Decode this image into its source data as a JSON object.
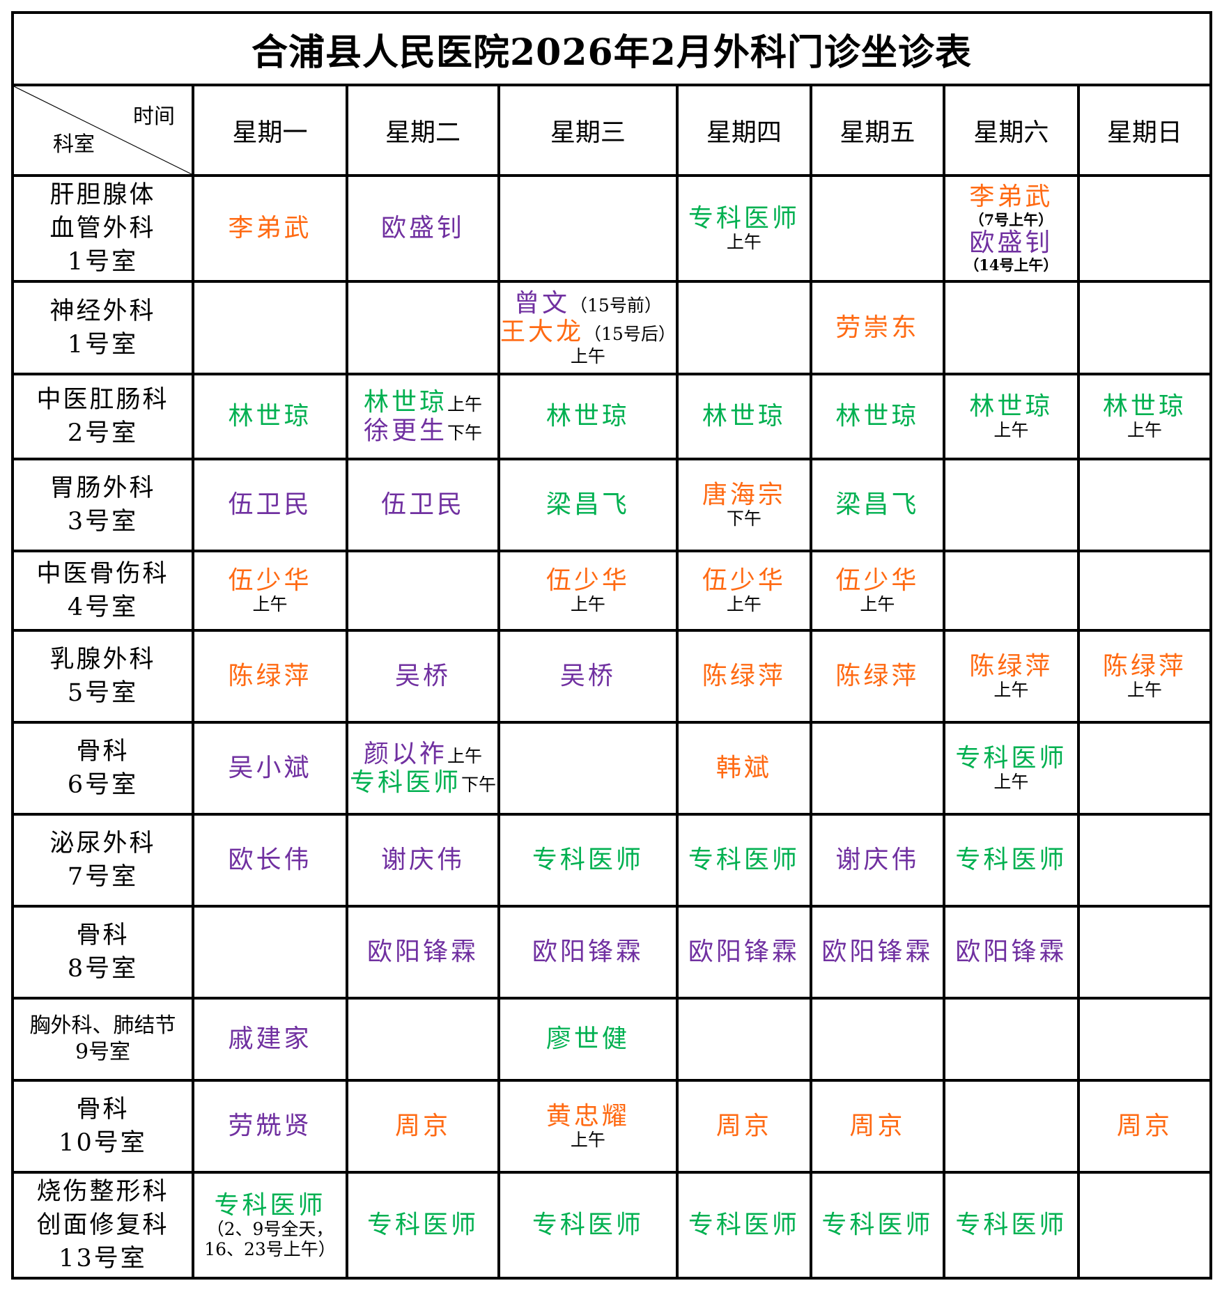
{
  "title": "合浦县人民医院2026年2月外科门诊坐诊表",
  "corner": {
    "top": "时间",
    "bottom": "科室"
  },
  "days": [
    "星期一",
    "星期二",
    "星期三",
    "星期四",
    "星期五",
    "星期六",
    "星期日"
  ],
  "colors": {
    "orange": "#FF6A13",
    "purple": "#7030A0",
    "green": "#00B050"
  },
  "rows": [
    {
      "dept": [
        "肝胆腺体",
        "血管外科",
        "1号室"
      ],
      "cells": [
        [
          [
            {
              "t": "李弟武",
              "c": "orange"
            }
          ]
        ],
        [
          [
            {
              "t": "欧盛钊",
              "c": "purple"
            }
          ]
        ],
        [],
        [
          [
            {
              "t": "专科医师",
              "c": "green"
            }
          ],
          [
            {
              "t": "上午",
              "c": "note"
            }
          ]
        ],
        [],
        [
          [
            {
              "t": "李弟武",
              "c": "orange"
            }
          ],
          [
            {
              "t": "（7号上午）",
              "c": "small"
            }
          ],
          [
            {
              "t": "欧盛钊",
              "c": "purple"
            }
          ],
          [
            {
              "t": "（14号上午）",
              "c": "small"
            }
          ]
        ],
        []
      ]
    },
    {
      "dept": [
        "神经外科",
        "1号室"
      ],
      "cells": [
        [],
        [],
        [
          [
            {
              "t": "曾文",
              "c": "purple"
            },
            {
              "t": "（15号前）",
              "c": "note"
            }
          ],
          [
            {
              "t": "王大龙",
              "c": "orange"
            },
            {
              "t": "（15号后）",
              "c": "note"
            }
          ],
          [
            {
              "t": "上午",
              "c": "note"
            }
          ]
        ],
        [],
        [
          [
            {
              "t": "劳崇东",
              "c": "orange"
            }
          ]
        ],
        [],
        []
      ]
    },
    {
      "dept": [
        "中医肛肠科",
        "2号室"
      ],
      "cells": [
        [
          [
            {
              "t": "林世琼",
              "c": "green"
            }
          ]
        ],
        [
          [
            {
              "t": "林世琼",
              "c": "green"
            },
            {
              "t": "上午",
              "c": "note"
            }
          ],
          [
            {
              "t": "徐更生",
              "c": "purple"
            },
            {
              "t": "下午",
              "c": "note"
            }
          ]
        ],
        [
          [
            {
              "t": "林世琼",
              "c": "green"
            }
          ]
        ],
        [
          [
            {
              "t": "林世琼",
              "c": "green"
            }
          ]
        ],
        [
          [
            {
              "t": "林世琼",
              "c": "green"
            }
          ]
        ],
        [
          [
            {
              "t": "林世琼",
              "c": "green"
            }
          ],
          [
            {
              "t": "上午",
              "c": "note"
            }
          ]
        ],
        [
          [
            {
              "t": "林世琼",
              "c": "green"
            }
          ],
          [
            {
              "t": "上午",
              "c": "note"
            }
          ]
        ]
      ]
    },
    {
      "dept": [
        "胃肠外科",
        "3号室"
      ],
      "cells": [
        [
          [
            {
              "t": "伍卫民",
              "c": "purple"
            }
          ]
        ],
        [
          [
            {
              "t": "伍卫民",
              "c": "purple"
            }
          ]
        ],
        [
          [
            {
              "t": "梁昌飞",
              "c": "green"
            }
          ]
        ],
        [
          [
            {
              "t": "唐海宗",
              "c": "orange"
            }
          ],
          [
            {
              "t": "下午",
              "c": "note"
            }
          ]
        ],
        [
          [
            {
              "t": "梁昌飞",
              "c": "green"
            }
          ]
        ],
        [],
        []
      ]
    },
    {
      "dept": [
        "中医骨伤科",
        "4号室"
      ],
      "cells": [
        [
          [
            {
              "t": "伍少华",
              "c": "orange"
            }
          ],
          [
            {
              "t": "上午",
              "c": "note"
            }
          ]
        ],
        [],
        [
          [
            {
              "t": "伍少华",
              "c": "orange"
            }
          ],
          [
            {
              "t": "上午",
              "c": "note"
            }
          ]
        ],
        [
          [
            {
              "t": "伍少华",
              "c": "orange"
            }
          ],
          [
            {
              "t": "上午",
              "c": "note"
            }
          ]
        ],
        [
          [
            {
              "t": "伍少华",
              "c": "orange"
            }
          ],
          [
            {
              "t": "上午",
              "c": "note"
            }
          ]
        ],
        [],
        []
      ]
    },
    {
      "dept": [
        "乳腺外科",
        "5号室"
      ],
      "cells": [
        [
          [
            {
              "t": "陈绿萍",
              "c": "orange"
            }
          ]
        ],
        [
          [
            {
              "t": "吴桥",
              "c": "purple"
            }
          ]
        ],
        [
          [
            {
              "t": "吴桥",
              "c": "purple"
            }
          ]
        ],
        [
          [
            {
              "t": "陈绿萍",
              "c": "orange"
            }
          ]
        ],
        [
          [
            {
              "t": "陈绿萍",
              "c": "orange"
            }
          ]
        ],
        [
          [
            {
              "t": "陈绿萍",
              "c": "orange"
            }
          ],
          [
            {
              "t": "上午",
              "c": "note"
            }
          ]
        ],
        [
          [
            {
              "t": "陈绿萍",
              "c": "orange"
            }
          ],
          [
            {
              "t": "上午",
              "c": "note"
            }
          ]
        ]
      ]
    },
    {
      "dept": [
        "骨科",
        "6号室"
      ],
      "cells": [
        [
          [
            {
              "t": "吴小斌",
              "c": "purple"
            }
          ]
        ],
        [
          [
            {
              "t": "颜以祚",
              "c": "purple"
            },
            {
              "t": "上午",
              "c": "note"
            }
          ],
          [
            {
              "t": "专科医师",
              "c": "green"
            },
            {
              "t": "下午",
              "c": "note"
            }
          ]
        ],
        [],
        [
          [
            {
              "t": "韩斌",
              "c": "orange"
            }
          ]
        ],
        [],
        [
          [
            {
              "t": "专科医师",
              "c": "green"
            }
          ],
          [
            {
              "t": "上午",
              "c": "note"
            }
          ]
        ],
        []
      ]
    },
    {
      "dept": [
        "泌尿外科",
        "7号室"
      ],
      "cells": [
        [
          [
            {
              "t": "欧长伟",
              "c": "purple"
            }
          ]
        ],
        [
          [
            {
              "t": "谢庆伟",
              "c": "purple"
            }
          ]
        ],
        [
          [
            {
              "t": "专科医师",
              "c": "green"
            }
          ]
        ],
        [
          [
            {
              "t": "专科医师",
              "c": "green"
            }
          ]
        ],
        [
          [
            {
              "t": "谢庆伟",
              "c": "purple"
            }
          ]
        ],
        [
          [
            {
              "t": "专科医师",
              "c": "green"
            }
          ]
        ],
        []
      ]
    },
    {
      "dept": [
        "骨科",
        "8号室"
      ],
      "cells": [
        [],
        [
          [
            {
              "t": "欧阳锋霖",
              "c": "purple"
            }
          ]
        ],
        [
          [
            {
              "t": "欧阳锋霖",
              "c": "purple"
            }
          ]
        ],
        [
          [
            {
              "t": "欧阳锋霖",
              "c": "purple"
            }
          ]
        ],
        [
          [
            {
              "t": "欧阳锋霖",
              "c": "purple"
            }
          ]
        ],
        [
          [
            {
              "t": "欧阳锋霖",
              "c": "purple"
            }
          ]
        ],
        []
      ]
    },
    {
      "dept": [
        "胸外科、肺结节",
        "9号室"
      ],
      "small": true,
      "cells": [
        [
          [
            {
              "t": "戚建家",
              "c": "purple"
            }
          ]
        ],
        [],
        [
          [
            {
              "t": "廖世健",
              "c": "green"
            }
          ]
        ],
        [],
        [],
        [],
        []
      ]
    },
    {
      "dept": [
        "骨科",
        "10号室"
      ],
      "cells": [
        [
          [
            {
              "t": "劳兟贤",
              "c": "purple"
            }
          ]
        ],
        [
          [
            {
              "t": "周京",
              "c": "orange"
            }
          ]
        ],
        [
          [
            {
              "t": "黄忠耀",
              "c": "orange"
            }
          ],
          [
            {
              "t": "上午",
              "c": "note"
            }
          ]
        ],
        [
          [
            {
              "t": "周京",
              "c": "orange"
            }
          ]
        ],
        [
          [
            {
              "t": "周京",
              "c": "orange"
            }
          ]
        ],
        [],
        [
          [
            {
              "t": "周京",
              "c": "orange"
            }
          ]
        ]
      ]
    },
    {
      "dept": [
        "烧伤整形科",
        "创面修复科",
        "13号室"
      ],
      "cells": [
        [
          [
            {
              "t": "专科医师",
              "c": "green"
            }
          ],
          [
            {
              "t": "（2、9号全天，",
              "c": "note"
            }
          ],
          [
            {
              "t": "16、23号上午）",
              "c": "note"
            }
          ]
        ],
        [
          [
            {
              "t": "专科医师",
              "c": "green"
            }
          ]
        ],
        [
          [
            {
              "t": "专科医师",
              "c": "green"
            }
          ]
        ],
        [
          [
            {
              "t": "专科医师",
              "c": "green"
            }
          ]
        ],
        [
          [
            {
              "t": "专科医师",
              "c": "green"
            }
          ]
        ],
        [
          [
            {
              "t": "专科医师",
              "c": "green"
            }
          ]
        ],
        []
      ]
    }
  ]
}
